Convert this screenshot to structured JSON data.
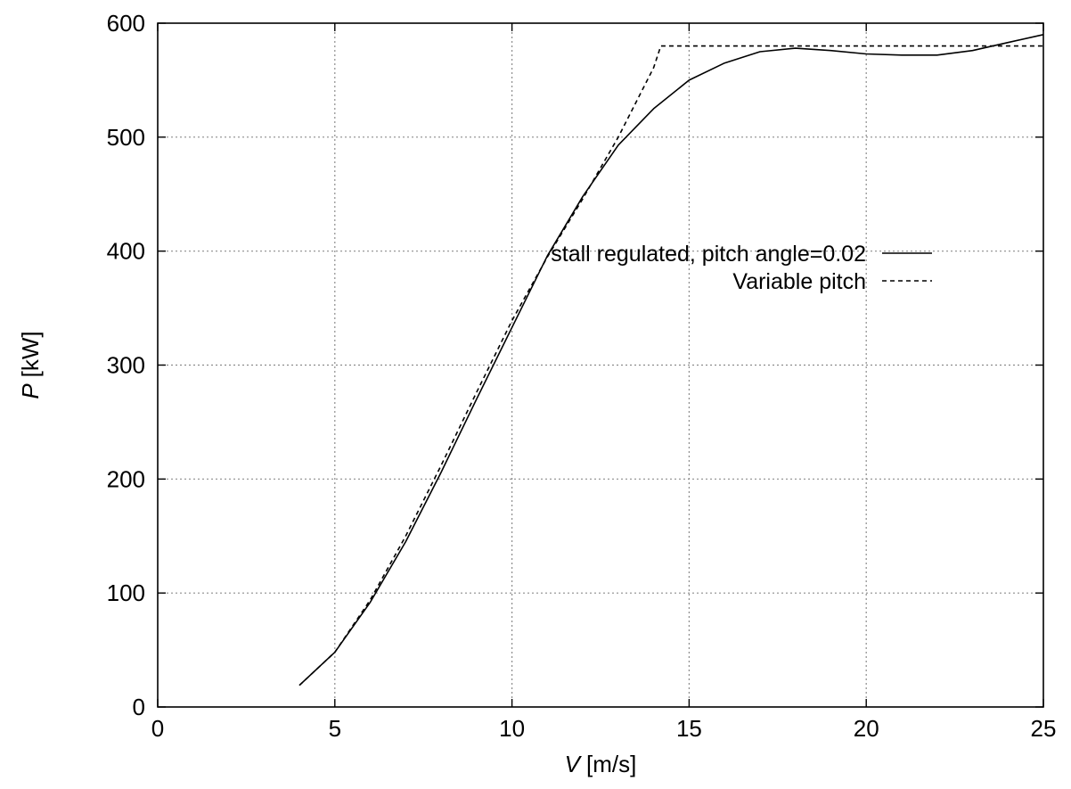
{
  "chart_data": {
    "type": "line",
    "title": "",
    "xlabel": {
      "var": "V",
      "unit": "[m/s]"
    },
    "ylabel": {
      "var": "P",
      "unit": "[kW]"
    },
    "xlim": [
      0,
      25
    ],
    "ylim": [
      0,
      600
    ],
    "xticks": [
      0,
      5,
      10,
      15,
      20,
      25
    ],
    "yticks": [
      0,
      100,
      200,
      300,
      400,
      500,
      600
    ],
    "xtick_labels": [
      "0",
      "5",
      "10",
      "15",
      "20",
      "25"
    ],
    "ytick_labels": [
      "0",
      "100",
      "200",
      "300",
      "400",
      "500",
      "600"
    ],
    "grid": true,
    "legend_position": "right, upper-middle",
    "series": [
      {
        "name": "stall regulated, pitch angle=0.02",
        "style": "solid",
        "color": "#000000",
        "x": [
          4,
          5,
          6,
          7,
          8,
          9,
          10,
          11,
          12,
          13,
          14,
          15,
          16,
          17,
          18,
          19,
          20,
          21,
          22,
          23,
          24,
          25
        ],
        "y": [
          19,
          48,
          92,
          145,
          206,
          270,
          333,
          396,
          448,
          493,
          525,
          550,
          565,
          575,
          578,
          576,
          573,
          572,
          572,
          576,
          583,
          590
        ]
      },
      {
        "name": "Variable pitch",
        "style": "dashed",
        "color": "#000000",
        "x": [
          4,
          5,
          6,
          7,
          8,
          9,
          10,
          11,
          12,
          13,
          14,
          14.2,
          15,
          16,
          17,
          18,
          19,
          20,
          21,
          22,
          23,
          24,
          25
        ],
        "y": [
          19,
          48,
          94,
          150,
          212,
          276,
          339,
          395,
          446,
          500,
          561,
          580,
          580,
          580,
          580,
          580,
          580,
          580,
          580,
          580,
          580,
          580,
          580
        ]
      }
    ]
  }
}
